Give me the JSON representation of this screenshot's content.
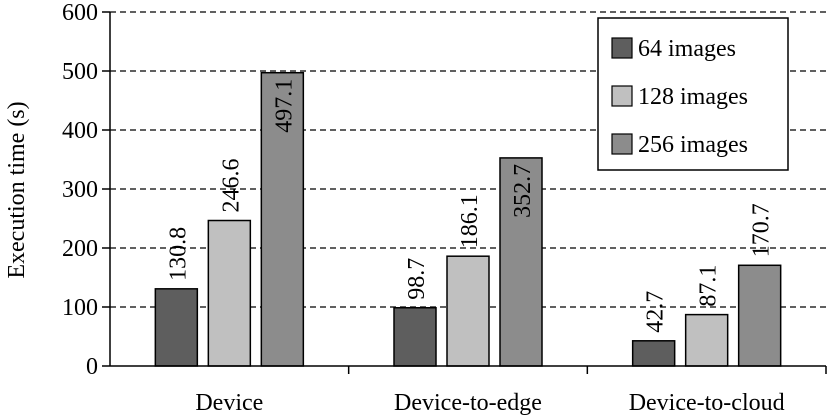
{
  "chart_data": {
    "type": "bar",
    "ylabel": "Execution time (s)",
    "xlabel": "",
    "ylim": [
      0,
      600
    ],
    "yticks": [
      0,
      100,
      200,
      300,
      400,
      500,
      600
    ],
    "grid": "horizontal dashed",
    "legend_position": "top-right",
    "categories": [
      "Device",
      "Device-to-edge",
      "Device-to-cloud"
    ],
    "series": [
      {
        "name": "64 images",
        "color": "#5e5e5e",
        "values": [
          130.8,
          98.7,
          42.7
        ]
      },
      {
        "name": "128 images",
        "color": "#c0c0c0",
        "values": [
          246.6,
          186.1,
          87.1
        ]
      },
      {
        "name": "256 images",
        "color": "#8c8c8c",
        "values": [
          497.1,
          352.7,
          170.7
        ]
      }
    ],
    "data_labels": [
      [
        "130.8",
        "246.6",
        "497.1"
      ],
      [
        "98.7",
        "186.1",
        "352.7"
      ],
      [
        "42.7",
        "87.1",
        "170.7"
      ]
    ]
  }
}
